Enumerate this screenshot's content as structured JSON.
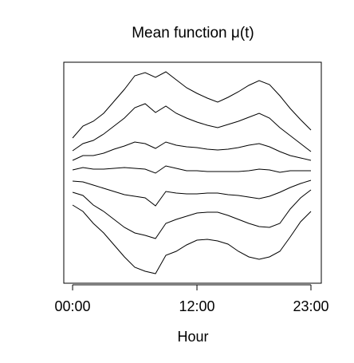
{
  "chart_data": {
    "type": "line",
    "title": "Mean function μ(t)",
    "xlabel": "Hour",
    "x": [
      0,
      1,
      2,
      3,
      4,
      5,
      6,
      7,
      8,
      9,
      10,
      11,
      12,
      13,
      14,
      15,
      16,
      17,
      18,
      19,
      20,
      21,
      22,
      23
    ],
    "xlim": [
      -0.85,
      24
    ],
    "ylim": [
      0,
      277
    ],
    "xticks": [
      {
        "value": 0,
        "label": "00:00"
      },
      {
        "value": 12,
        "label": "12:00"
      },
      {
        "value": 23,
        "label": "23:00"
      }
    ],
    "series": [
      {
        "color": "#000000",
        "values": [
          182,
          197,
          203,
          213,
          228,
          243,
          260,
          264,
          258,
          265,
          255,
          245,
          238,
          232,
          227,
          233,
          240,
          248,
          254,
          249,
          235,
          219,
          205,
          192
        ]
      },
      {
        "color": "#000000",
        "values": [
          166,
          175,
          179,
          187,
          197,
          207,
          220,
          225,
          214,
          222,
          213,
          207,
          202,
          198,
          195,
          199,
          203,
          208,
          213,
          207,
          195,
          185,
          175,
          165
        ]
      },
      {
        "color": "#000000",
        "values": [
          154,
          160,
          160,
          163,
          168,
          172,
          177,
          175,
          169,
          177,
          173,
          171,
          170,
          168,
          167,
          168,
          170,
          173,
          175,
          171,
          165,
          160,
          157,
          154
        ]
      },
      {
        "color": "#000000",
        "values": [
          142,
          145,
          143,
          143,
          144,
          145,
          144,
          143,
          138,
          147,
          144,
          141,
          141,
          140,
          140,
          140,
          140,
          141,
          143,
          142,
          139,
          141,
          141,
          141
        ]
      },
      {
        "color": "#000000",
        "values": [
          128,
          127,
          123,
          119,
          115,
          111,
          109,
          107,
          97,
          115,
          113,
          112,
          112,
          113,
          113,
          111,
          110,
          108,
          106,
          109,
          114,
          120,
          125,
          129
        ]
      },
      {
        "color": "#000000",
        "values": [
          114,
          110,
          98,
          90,
          80,
          70,
          63,
          60,
          56,
          75,
          80,
          84,
          88,
          89,
          89,
          85,
          80,
          75,
          71,
          70,
          75,
          93,
          107,
          117
        ]
      },
      {
        "color": "#000000",
        "values": [
          98,
          90,
          75,
          63,
          48,
          33,
          20,
          15,
          12,
          35,
          40,
          48,
          54,
          55,
          53,
          49,
          40,
          33,
          30,
          33,
          40,
          58,
          77,
          90
        ]
      }
    ]
  }
}
